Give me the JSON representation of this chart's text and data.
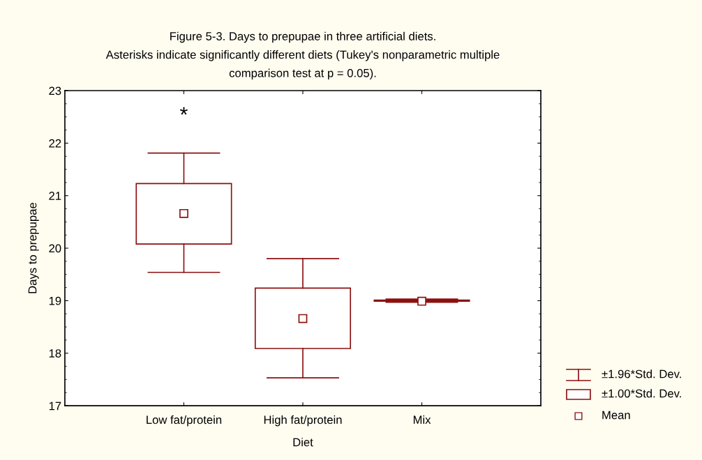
{
  "chart_data": {
    "type": "box",
    "title": "Figure 5-3. Days to prepupae in three artificial diets.\nAsterisks indicate significantly different diets (Tukey's nonparametric multiple\ncomparison test at p = 0.05).",
    "xlabel": "Diet",
    "ylabel": "Days to prepupae",
    "categories": [
      "Low fat/protein",
      "High fat/protein",
      "Mix"
    ],
    "ylim": [
      17,
      23
    ],
    "yticks": [
      17,
      18,
      19,
      20,
      21,
      22,
      23
    ],
    "color": "#8b1111",
    "marker": "square",
    "boxes": [
      {
        "low": 19.54,
        "q1": 20.08,
        "q3": 21.23,
        "high": 21.81,
        "mean": 20.66
      },
      {
        "low": 17.53,
        "q1": 18.09,
        "q3": 19.24,
        "high": 19.8,
        "mean": 18.66
      },
      {
        "low": 18.97,
        "q1": 18.99,
        "q3": 19.01,
        "high": 19.03,
        "mean": 18.99
      }
    ],
    "annotations": [
      "*",
      "±1.96*Std. Dev.",
      "±1.00*Std. Dev.",
      "Mean"
    ],
    "grid": false
  }
}
